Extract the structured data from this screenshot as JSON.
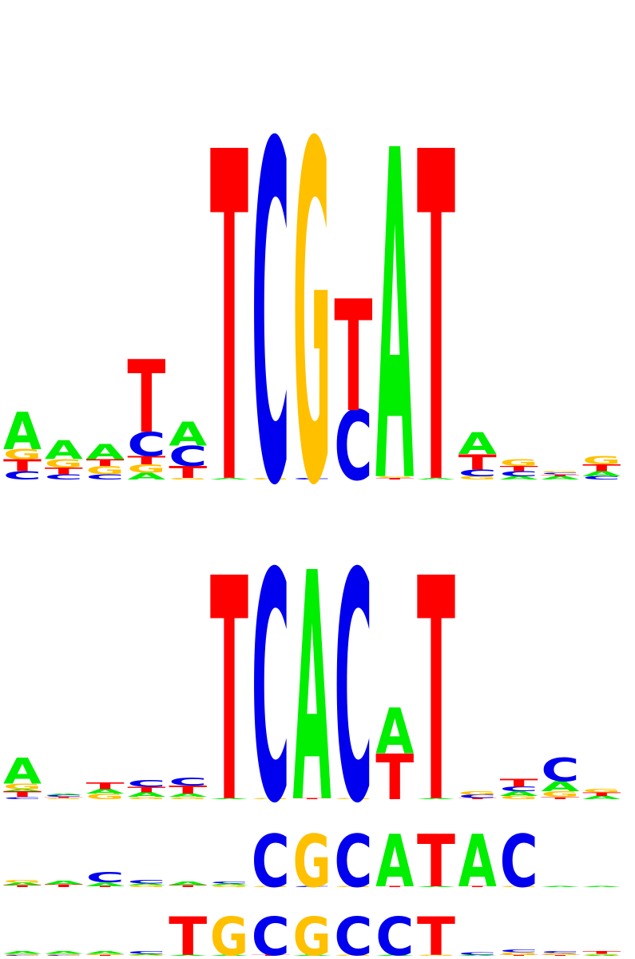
{
  "colors": {
    "A": "#00ee00",
    "C": "#0000ee",
    "G": "#ffc000",
    "T": "#ff0000"
  },
  "logos": [
    {
      "name": "logo-1",
      "max_bits": 2,
      "columns": [
        [
          [
            "C",
            0.05
          ],
          [
            "T",
            0.07
          ],
          [
            "G",
            0.06
          ],
          [
            "A",
            0.22
          ]
        ],
        [
          [
            "C",
            0.03
          ],
          [
            "T",
            0.04
          ],
          [
            "G",
            0.05
          ],
          [
            "A",
            0.11
          ]
        ],
        [
          [
            "C",
            0.03
          ],
          [
            "G",
            0.05
          ],
          [
            "T",
            0.04
          ],
          [
            "A",
            0.09
          ]
        ],
        [
          [
            "A",
            0.04
          ],
          [
            "G",
            0.05
          ],
          [
            "T",
            0.05
          ],
          [
            "C",
            0.14
          ],
          [
            "T",
            0.43
          ]
        ],
        [
          [
            "G",
            0.01
          ],
          [
            "T",
            0.07
          ],
          [
            "C",
            0.12
          ],
          [
            "A",
            0.14
          ]
        ],
        [
          [
            "A",
            0.01
          ],
          [
            "T",
            1.95
          ]
        ],
        [
          [
            "G",
            0.01
          ],
          [
            "C",
            2.0
          ]
        ],
        [
          [
            "C",
            0.01
          ],
          [
            "G",
            2.0
          ]
        ],
        [
          [
            "C",
            0.41
          ],
          [
            "T",
            0.66
          ]
        ],
        [
          [
            "T",
            0.01
          ],
          [
            "G",
            0.01
          ],
          [
            "A",
            1.95
          ]
        ],
        [
          [
            "A",
            0.01
          ],
          [
            "T",
            1.95
          ]
        ],
        [
          [
            "G",
            0.02
          ],
          [
            "C",
            0.04
          ],
          [
            "T",
            0.09
          ],
          [
            "A",
            0.13
          ]
        ],
        [
          [
            "A",
            0.02
          ],
          [
            "C",
            0.03
          ],
          [
            "T",
            0.03
          ],
          [
            "G",
            0.04
          ]
        ],
        [
          [
            "A",
            0.02
          ],
          [
            "T",
            0.01
          ],
          [
            "C",
            0.01
          ],
          [
            "G",
            0.01
          ]
        ],
        [
          [
            "C",
            0.02
          ],
          [
            "A",
            0.03
          ],
          [
            "T",
            0.04
          ],
          [
            "G",
            0.05
          ]
        ]
      ]
    },
    {
      "name": "logo-2",
      "max_bits": 2,
      "columns": [
        [
          [
            "C",
            0.02
          ],
          [
            "T",
            0.05
          ],
          [
            "A",
            0.02
          ],
          [
            "G",
            0.05
          ],
          [
            "A",
            0.23
          ]
        ],
        [
          [
            "G",
            0.01
          ],
          [
            "T",
            0.01
          ],
          [
            "C",
            0.02
          ],
          [
            "A",
            0.01
          ]
        ],
        [
          [
            "G",
            0.05
          ],
          [
            "A",
            0.04
          ],
          [
            "T",
            0.06
          ]
        ],
        [
          [
            "G",
            0.02
          ],
          [
            "A",
            0.04
          ],
          [
            "T",
            0.05
          ],
          [
            "C",
            0.06
          ]
        ],
        [
          [
            "G",
            0.02
          ],
          [
            "A",
            0.03
          ],
          [
            "T",
            0.07
          ],
          [
            "C",
            0.07
          ]
        ],
        [
          [
            "A",
            0.01
          ],
          [
            "T",
            2.0
          ]
        ],
        [
          [
            "G",
            0.01
          ],
          [
            "C",
            2.05
          ]
        ],
        [
          [
            "T",
            0.01
          ],
          [
            "A",
            2.05
          ]
        ],
        [
          [
            "G",
            0.01
          ],
          [
            "C",
            2.05
          ]
        ],
        [
          [
            "T",
            0.41
          ],
          [
            "A",
            0.41
          ]
        ],
        [
          [
            "A",
            0.01
          ],
          [
            "T",
            2.0
          ]
        ],
        [
          [
            "T",
            0.01
          ],
          [
            "C",
            0.03
          ],
          [
            "G",
            0.03
          ]
        ],
        [
          [
            "G",
            0.03
          ],
          [
            "A",
            0.04
          ],
          [
            "C",
            0.04
          ],
          [
            "T",
            0.07
          ]
        ],
        [
          [
            "T",
            0.02
          ],
          [
            "G",
            0.05
          ],
          [
            "A",
            0.09
          ],
          [
            "C",
            0.21
          ]
        ],
        [
          [
            "A",
            0.03
          ],
          [
            "T",
            0.03
          ],
          [
            "G",
            0.03
          ]
        ]
      ]
    },
    {
      "name": "logo-3",
      "max_bits": 2,
      "columns": [
        [
          [
            "T",
            0.02
          ],
          [
            "A",
            0.03
          ],
          [
            "G",
            0.03
          ]
        ],
        [
          [
            "T",
            0.03
          ],
          [
            "A",
            0.04
          ]
        ],
        [
          [
            "T",
            0.01
          ],
          [
            "A",
            0.04
          ],
          [
            "C",
            0.11
          ]
        ],
        [
          [
            "G",
            0.02
          ],
          [
            "A",
            0.02
          ],
          [
            "C",
            0.04
          ]
        ],
        [
          [
            "T",
            0.02
          ],
          [
            "A",
            0.04
          ]
        ],
        [
          [
            "G",
            0.02
          ],
          [
            "A",
            0.02
          ],
          [
            "C",
            0.02
          ]
        ],
        [
          [
            "G",
            0.01
          ],
          [
            "C",
            0.57
          ]
        ],
        [
          [
            "C",
            0.01
          ],
          [
            "G",
            0.57
          ]
        ],
        [
          [
            "G",
            0.01
          ],
          [
            "C",
            0.57
          ]
        ],
        [
          [
            "T",
            0.01
          ],
          [
            "A",
            0.57
          ]
        ],
        [
          [
            "A",
            0.01
          ],
          [
            "T",
            0.57
          ]
        ],
        [
          [
            "T",
            0.01
          ],
          [
            "A",
            0.57
          ]
        ],
        [
          [
            "G",
            0.01
          ],
          [
            "C",
            0.57
          ]
        ],
        [
          [
            "A",
            0.01
          ]
        ],
        [
          [
            "A",
            0.01
          ]
        ]
      ]
    },
    {
      "name": "logo-4",
      "max_bits": 2,
      "columns": [
        [
          [
            "C",
            0.01
          ],
          [
            "G",
            0.01
          ],
          [
            "A",
            0.03
          ]
        ],
        [
          [
            "C",
            0.01
          ],
          [
            "G",
            0.01
          ],
          [
            "A",
            0.03
          ]
        ],
        [
          [
            "T",
            0.01
          ],
          [
            "G",
            0.01
          ],
          [
            "A",
            0.03
          ]
        ],
        [
          [
            "G",
            0.01
          ],
          [
            "A",
            0.01
          ],
          [
            "C",
            0.03
          ]
        ],
        [
          [
            "A",
            0.01
          ],
          [
            "T",
            0.42
          ]
        ],
        [
          [
            "A",
            0.01
          ],
          [
            "G",
            0.42
          ]
        ],
        [
          [
            "T",
            0.01
          ],
          [
            "C",
            0.42
          ]
        ],
        [
          [
            "A",
            0.01
          ],
          [
            "G",
            0.42
          ]
        ],
        [
          [
            "G",
            0.01
          ],
          [
            "C",
            0.42
          ]
        ],
        [
          [
            "A",
            0.01
          ],
          [
            "C",
            0.42
          ]
        ],
        [
          [
            "G",
            0.01
          ],
          [
            "T",
            0.42
          ]
        ],
        [
          [
            "A",
            0.01
          ],
          [
            "C",
            0.03
          ]
        ],
        [
          [
            "T",
            0.01
          ],
          [
            "G",
            0.03
          ],
          [
            "C",
            0.03
          ]
        ],
        [
          [
            "T",
            0.01
          ],
          [
            "G",
            0.02
          ],
          [
            "C",
            0.02
          ]
        ],
        [
          [
            "A",
            0.01
          ],
          [
            "G",
            0.01
          ],
          [
            "T",
            0.03
          ]
        ]
      ]
    }
  ]
}
